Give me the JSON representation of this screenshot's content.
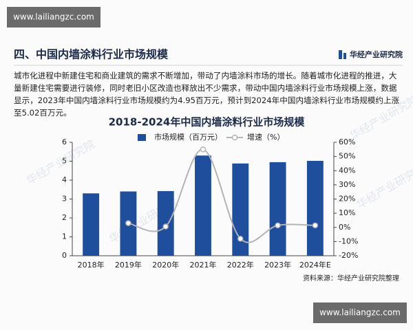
{
  "site_badge": "www.lailiangzc.com",
  "header": {
    "title": "四、中国内墙涂料行业市场规模",
    "logo": "华经产业研究院"
  },
  "paragraph": "城市化进程中新建住宅和商业建筑的需求不断增加，带动了内墙涂料市场的增长。随着城市化进程的推进，大量新建住宅需要进行装修，同时老旧小区改造也释放出不少需求，带动中国内墙涂料行业市场规模上涨，数据显示，2023年中国内墙涂料行业市场规模约为4.95百万元，预计到2024年中国内墙涂料行业市场规模约上涨至5.02百万元。",
  "watermark": "华经产业研究院",
  "chart_data": {
    "type": "bar-line",
    "title": "2018-2024年中国内墙涂料行业市场规模",
    "categories": [
      "2018年",
      "2019年",
      "2020年",
      "2021年",
      "2022年",
      "2023年",
      "2024年E"
    ],
    "series": [
      {
        "name": "市场规模（百万元）",
        "type": "bar",
        "color": "#1f4e9c",
        "values": [
          3.3,
          3.4,
          3.42,
          5.3,
          4.88,
          4.95,
          5.02
        ]
      },
      {
        "name": "增速（%）",
        "type": "line",
        "axis": "y2",
        "color": "#b4b4b4",
        "values": [
          null,
          3,
          0.6,
          55,
          -8,
          1.4,
          1.4
        ]
      }
    ],
    "ylim": [
      0,
      6
    ],
    "yticks": [
      0,
      1,
      2,
      3,
      4,
      5,
      6
    ],
    "y2lim": [
      -20,
      60
    ],
    "y2ticks": [
      {
        "value": -20,
        "label": "-20%"
      },
      {
        "value": -10,
        "label": "-10%"
      },
      {
        "value": 0,
        "label": "0%"
      },
      {
        "value": 10,
        "label": "10%"
      },
      {
        "value": 20,
        "label": "20%"
      },
      {
        "value": 30,
        "label": "30%"
      },
      {
        "value": 40,
        "label": "40%"
      },
      {
        "value": 50,
        "label": "50%"
      },
      {
        "value": 60,
        "label": "60%"
      }
    ],
    "source": "资料来源：华经产业研究院整理"
  }
}
